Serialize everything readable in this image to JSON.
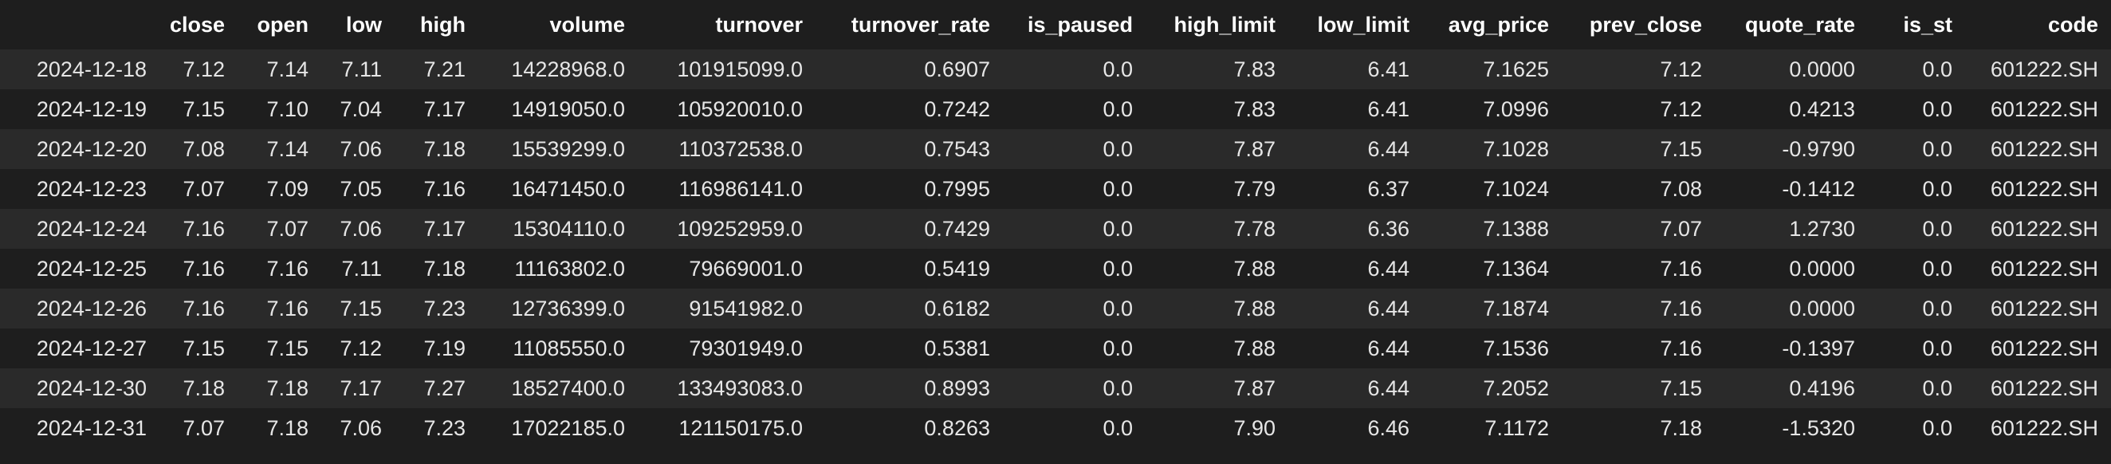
{
  "table": {
    "index_header": "",
    "columns": [
      "close",
      "open",
      "low",
      "high",
      "volume",
      "turnover",
      "turnover_rate",
      "is_paused",
      "high_limit",
      "low_limit",
      "avg_price",
      "prev_close",
      "quote_rate",
      "is_st",
      "code"
    ],
    "rows": [
      {
        "index": "2024-12-18",
        "cells": [
          "7.12",
          "7.14",
          "7.11",
          "7.21",
          "14228968.0",
          "101915099.0",
          "0.6907",
          "0.0",
          "7.83",
          "6.41",
          "7.1625",
          "7.12",
          "0.0000",
          "0.0",
          "601222.SH"
        ]
      },
      {
        "index": "2024-12-19",
        "cells": [
          "7.15",
          "7.10",
          "7.04",
          "7.17",
          "14919050.0",
          "105920010.0",
          "0.7242",
          "0.0",
          "7.83",
          "6.41",
          "7.0996",
          "7.12",
          "0.4213",
          "0.0",
          "601222.SH"
        ]
      },
      {
        "index": "2024-12-20",
        "cells": [
          "7.08",
          "7.14",
          "7.06",
          "7.18",
          "15539299.0",
          "110372538.0",
          "0.7543",
          "0.0",
          "7.87",
          "6.44",
          "7.1028",
          "7.15",
          "-0.9790",
          "0.0",
          "601222.SH"
        ]
      },
      {
        "index": "2024-12-23",
        "cells": [
          "7.07",
          "7.09",
          "7.05",
          "7.16",
          "16471450.0",
          "116986141.0",
          "0.7995",
          "0.0",
          "7.79",
          "6.37",
          "7.1024",
          "7.08",
          "-0.1412",
          "0.0",
          "601222.SH"
        ]
      },
      {
        "index": "2024-12-24",
        "cells": [
          "7.16",
          "7.07",
          "7.06",
          "7.17",
          "15304110.0",
          "109252959.0",
          "0.7429",
          "0.0",
          "7.78",
          "6.36",
          "7.1388",
          "7.07",
          "1.2730",
          "0.0",
          "601222.SH"
        ]
      },
      {
        "index": "2024-12-25",
        "cells": [
          "7.16",
          "7.16",
          "7.11",
          "7.18",
          "11163802.0",
          "79669001.0",
          "0.5419",
          "0.0",
          "7.88",
          "6.44",
          "7.1364",
          "7.16",
          "0.0000",
          "0.0",
          "601222.SH"
        ]
      },
      {
        "index": "2024-12-26",
        "cells": [
          "7.16",
          "7.16",
          "7.15",
          "7.23",
          "12736399.0",
          "91541982.0",
          "0.6182",
          "0.0",
          "7.88",
          "6.44",
          "7.1874",
          "7.16",
          "0.0000",
          "0.0",
          "601222.SH"
        ]
      },
      {
        "index": "2024-12-27",
        "cells": [
          "7.15",
          "7.15",
          "7.12",
          "7.19",
          "11085550.0",
          "79301949.0",
          "0.5381",
          "0.0",
          "7.88",
          "6.44",
          "7.1536",
          "7.16",
          "-0.1397",
          "0.0",
          "601222.SH"
        ]
      },
      {
        "index": "2024-12-30",
        "cells": [
          "7.18",
          "7.18",
          "7.17",
          "7.27",
          "18527400.0",
          "133493083.0",
          "0.8993",
          "0.0",
          "7.87",
          "6.44",
          "7.2052",
          "7.15",
          "0.4196",
          "0.0",
          "601222.SH"
        ]
      },
      {
        "index": "2024-12-31",
        "cells": [
          "7.07",
          "7.18",
          "7.06",
          "7.23",
          "17022185.0",
          "121150175.0",
          "0.8263",
          "0.0",
          "7.90",
          "6.46",
          "7.1172",
          "7.18",
          "-1.5320",
          "0.0",
          "601222.SH"
        ]
      }
    ]
  },
  "colors": {
    "background": "#1e1e1e",
    "row_stripe": "#2a2a2a",
    "text": "#e6e6e6",
    "header_text": "#ffffff"
  }
}
